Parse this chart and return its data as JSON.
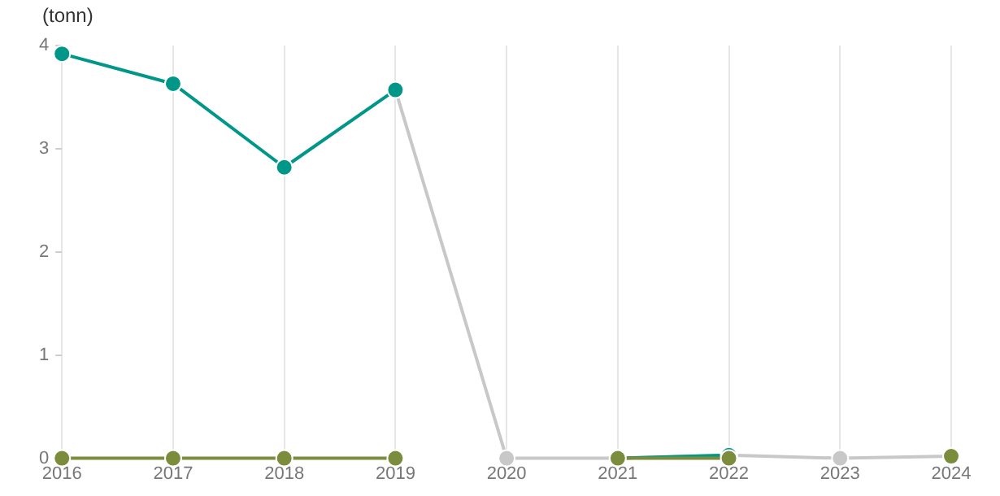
{
  "chart_data": {
    "type": "line",
    "ylabel": "(tonn)",
    "x": [
      2016,
      2017,
      2018,
      2019,
      2020,
      2021,
      2022,
      2023,
      2024
    ],
    "series": [
      {
        "color": "#7b8c3c",
        "values": [
          0,
          0,
          0,
          0,
          null,
          0,
          0,
          null,
          0.02
        ]
      },
      {
        "color": "#009688",
        "values": [
          3.92,
          3.63,
          2.82,
          3.57,
          null,
          0,
          0.03,
          null,
          null
        ]
      },
      {
        "color": "#c8c8c8",
        "values": [
          null,
          null,
          null,
          3.57,
          0,
          0,
          0.03,
          0,
          0.02
        ]
      }
    ],
    "xlim": [
      2016,
      2024
    ],
    "xticks": [
      2016,
      2017,
      2018,
      2019,
      2020,
      2021,
      2022,
      2023,
      2024
    ],
    "ylim": [
      0,
      4
    ],
    "yticks": [
      0,
      1,
      2,
      3,
      4
    ],
    "grid": "x",
    "legend": false,
    "marker": "circle",
    "line_style": "solid"
  }
}
